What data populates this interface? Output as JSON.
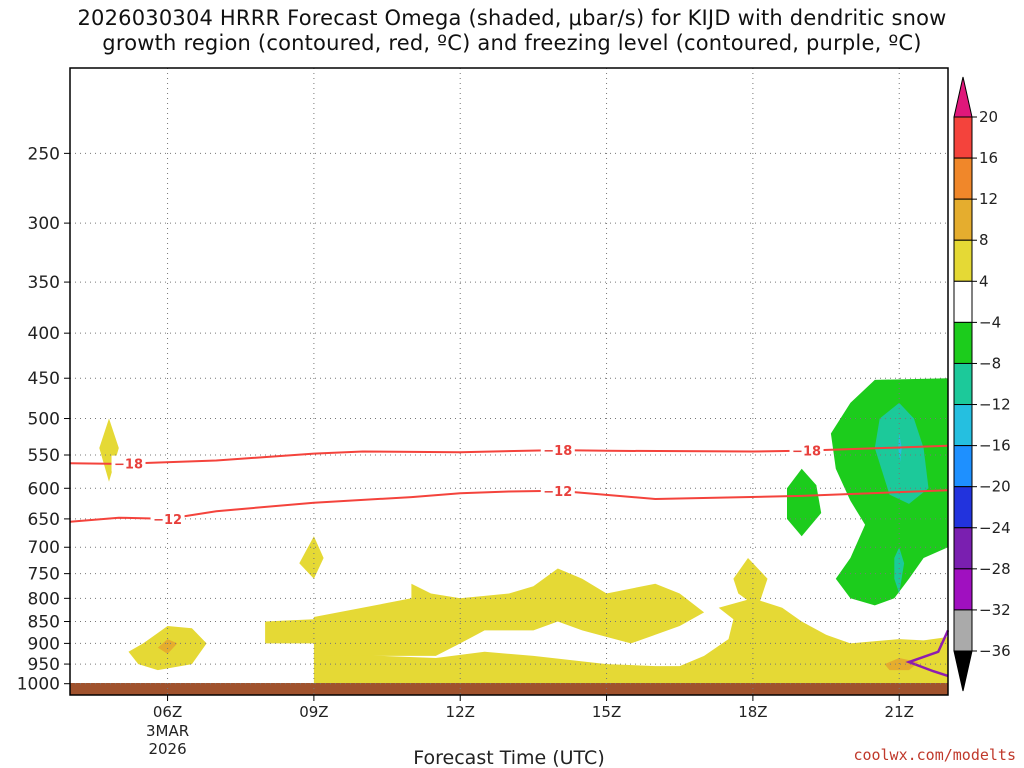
{
  "chart_data": {
    "type": "heatmap",
    "title": "2026030304 HRRR Forecast Omega (shaded, μbar/s) for KIJD with dendritic snow\ngrowth region (contoured, red, ºC) and freezing level (contoured, purple, ºC)",
    "xlabel": "Forecast Time (UTC)",
    "ylabel": "",
    "credit": "coolwx.com/modelts",
    "x_ticks": [
      "06Z",
      "09Z",
      "12Z",
      "15Z",
      "18Z",
      "21Z"
    ],
    "x_date_labels": [
      "3MAR",
      "2026"
    ],
    "x_hours": [
      6,
      9,
      12,
      15,
      18,
      21
    ],
    "xlim": [
      4,
      22
    ],
    "y_ticks": [
      250,
      300,
      350,
      400,
      450,
      500,
      550,
      600,
      650,
      700,
      750,
      800,
      850,
      900,
      950,
      1000
    ],
    "ylim": [
      200,
      1030
    ],
    "grid": true,
    "colorbar": {
      "labels": [
        "20",
        "16",
        "12",
        "8",
        "4",
        "−4",
        "−8",
        "−12",
        "−16",
        "−20",
        "−24",
        "−28",
        "−32",
        "−36"
      ],
      "colors": [
        "#e0177a",
        "#f4433c",
        "#f0872a",
        "#e5ad2e",
        "#e5d935",
        "#ffffff",
        "#1ccc1c",
        "#1cc99a",
        "#25bfe0",
        "#1e90ff",
        "#2233dd",
        "#7a1fb0",
        "#a010c0",
        "#aaaaaa",
        "#000000"
      ]
    },
    "contours": [
      {
        "label": "−18",
        "x": [
          4,
          5,
          7,
          9,
          10,
          12,
          14,
          15,
          18,
          19,
          22
        ],
        "y": [
          562,
          563,
          558,
          548,
          545,
          546,
          543,
          544,
          545,
          544,
          537
        ]
      },
      {
        "label": "−12",
        "x": [
          4,
          5,
          6,
          7,
          9,
          11,
          12,
          13,
          14,
          16,
          19,
          22
        ],
        "y": [
          655,
          648,
          650,
          637,
          623,
          614,
          608,
          605,
          604,
          617,
          612,
          603
        ]
      }
    ],
    "freezing_level_color": "#8e1cb0",
    "ground_color": "#a0522d"
  }
}
